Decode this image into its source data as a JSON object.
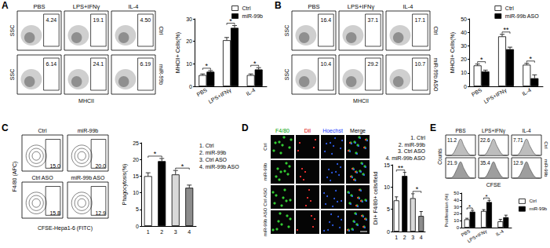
{
  "chart_data": [
    {
      "type": "bar",
      "title": "A",
      "categories": [
        "PBS",
        "LPS+IFNγ",
        "IL-4"
      ],
      "series": [
        {
          "name": "Ctrl",
          "color": "#ffffff",
          "values": [
            5,
            20.5,
            5
          ],
          "errors": [
            0.5,
            1.2,
            0.5
          ]
        },
        {
          "name": "miR-99b",
          "color": "#000000",
          "values": [
            6.5,
            26,
            7.5
          ],
          "errors": [
            0.5,
            1,
            0.8
          ]
        }
      ],
      "ylabel": "MHCII+ Cells(%)",
      "ylim": [
        0,
        30
      ],
      "yticks": [
        0,
        10,
        20,
        30
      ],
      "grid": false,
      "legend": "top-right",
      "significance": [
        "*",
        "*",
        "*"
      ],
      "subplots": {
        "type": "dot",
        "xlabel": "MHCII",
        "ylabel": "SSC",
        "columns": [
          "PBS",
          "LPS+IFNγ",
          "IL-4"
        ],
        "rows": [
          "Ctrl",
          "miR-99b"
        ],
        "percentages": [
          [
            "4.24",
            "19.1",
            "4.50"
          ],
          [
            "6.14",
            "24.1",
            "6.19"
          ]
        ]
      }
    },
    {
      "type": "bar",
      "title": "B",
      "categories": [
        "PBS",
        "LPS+IFNγ",
        "IL-4"
      ],
      "series": [
        {
          "name": "Ctrl",
          "color": "#ffffff",
          "values": [
            15.5,
            37,
            16
          ],
          "errors": [
            1,
            1.5,
            1
          ]
        },
        {
          "name": "miR-99b ASO",
          "color": "#000000",
          "values": [
            11,
            27.5,
            6
          ],
          "errors": [
            1,
            1.5,
            2.5
          ]
        }
      ],
      "ylabel": "MHCII+ Cells(%)",
      "ylim": [
        0,
        50
      ],
      "yticks": [
        0,
        10,
        20,
        30,
        40,
        50
      ],
      "grid": false,
      "legend": "top-right",
      "significance": [
        "*",
        "**",
        "*"
      ],
      "subplots": {
        "type": "dot",
        "xlabel": "MHCII",
        "ylabel": "SSC",
        "columns": [
          "PBS",
          "LPS+IFNγ",
          "IL-4"
        ],
        "rows": [
          "Ctrl",
          "miR-99b ASO"
        ],
        "percentages": [
          [
            "16.4",
            "37.1",
            "17.1"
          ],
          [
            "10.4",
            "29.2",
            "10.7"
          ]
        ]
      }
    },
    {
      "type": "bar",
      "title": "C",
      "categories": [
        "1",
        "2",
        "3",
        "4"
      ],
      "values": [
        15,
        19.5,
        15.5,
        11.5
      ],
      "errors": [
        1,
        0.8,
        1.2,
        0.8
      ],
      "colors": [
        "#ffffff",
        "#000000",
        "#d9d9d9",
        "#8c8c8c"
      ],
      "ylabel": "Phagocytosis(%)",
      "ylim": [
        0,
        25
      ],
      "yticks": [
        0,
        5,
        10,
        15,
        20,
        25
      ],
      "grid": false,
      "legend": "right",
      "legend_items": [
        "1. Ctrl",
        "2. miR-99b",
        "3. Ctrl ASO",
        "4. miR-99b ASO"
      ],
      "significance": [
        {
          "between": [
            "1",
            "2"
          ],
          "label": "*"
        },
        {
          "between": [
            "3",
            "4"
          ],
          "label": "*"
        }
      ],
      "subplots": {
        "type": "contour",
        "xlabel": "CFSE-Hepa1-6 (FITC)",
        "ylabel": "F4/80 (APC)",
        "panels": [
          {
            "name": "Ctrl",
            "percentage": "15.0"
          },
          {
            "name": "miR-99b",
            "percentage": "20.0"
          },
          {
            "name": "Ctrl ASO",
            "percentage": "15.8"
          },
          {
            "name": "miR-99b ASO",
            "percentage": "12.9"
          }
        ]
      }
    },
    {
      "type": "bar",
      "title": "D",
      "categories": [
        "1",
        "2",
        "3",
        "4"
      ],
      "values": [
        7,
        12.5,
        7.5,
        3.5
      ],
      "errors": [
        0.8,
        0.8,
        1,
        1
      ],
      "colors": [
        "#ffffff",
        "#000000",
        "#d9d9d9",
        "#8c8c8c"
      ],
      "ylabel": "DiI+ F4/80+ cells/field",
      "ylim": [
        0,
        15
      ],
      "yticks": [
        0,
        5,
        10,
        15
      ],
      "grid": false,
      "legend": "top-right",
      "legend_items": [
        "1. Ctrl",
        "2. miR-99b",
        "3. Ctrl ASO",
        "4. miR-99b ASO"
      ],
      "significance": [
        {
          "between": [
            "1",
            "2"
          ],
          "label": "**"
        },
        {
          "between": [
            "3",
            "4"
          ],
          "label": "*"
        }
      ],
      "subplots": {
        "type": "image",
        "columns": [
          "F4/80",
          "DiI",
          "Hoechst",
          "Merge"
        ],
        "rows": [
          "Ctrl",
          "miR-99b",
          "Ctrl ASO",
          "miR-99b ASO"
        ]
      }
    },
    {
      "type": "bar",
      "title": "E",
      "categories": [
        "PBS",
        "LPS+IFNγ",
        "IL-4"
      ],
      "series": [
        {
          "name": "Ctrl",
          "color": "#ffffff",
          "values": [
            12,
            24,
            9
          ],
          "errors": [
            1.5,
            2,
            3
          ]
        },
        {
          "name": "miR-99b",
          "color": "#000000",
          "values": [
            23,
            37,
            15
          ],
          "errors": [
            2,
            2.5,
            3
          ]
        }
      ],
      "ylabel": "Proliferation (%)",
      "ylim": [
        0,
        50
      ],
      "yticks": [
        0,
        10,
        20,
        30,
        40,
        50
      ],
      "grid": false,
      "legend": "right",
      "significance": [
        "*",
        "*",
        null
      ],
      "subplots": {
        "type": "histogram",
        "xlabel": "CFSE",
        "ylabel": "Counts",
        "columns": [
          "PBS",
          "LPS+IFNγ",
          "IL-4"
        ],
        "rows": [
          "Ctrl",
          "miR-99b"
        ],
        "percentages": [
          [
            "11.2",
            "22.6",
            "7.71"
          ],
          [
            "21.9",
            "35.4",
            "12.9"
          ]
        ]
      }
    }
  ]
}
